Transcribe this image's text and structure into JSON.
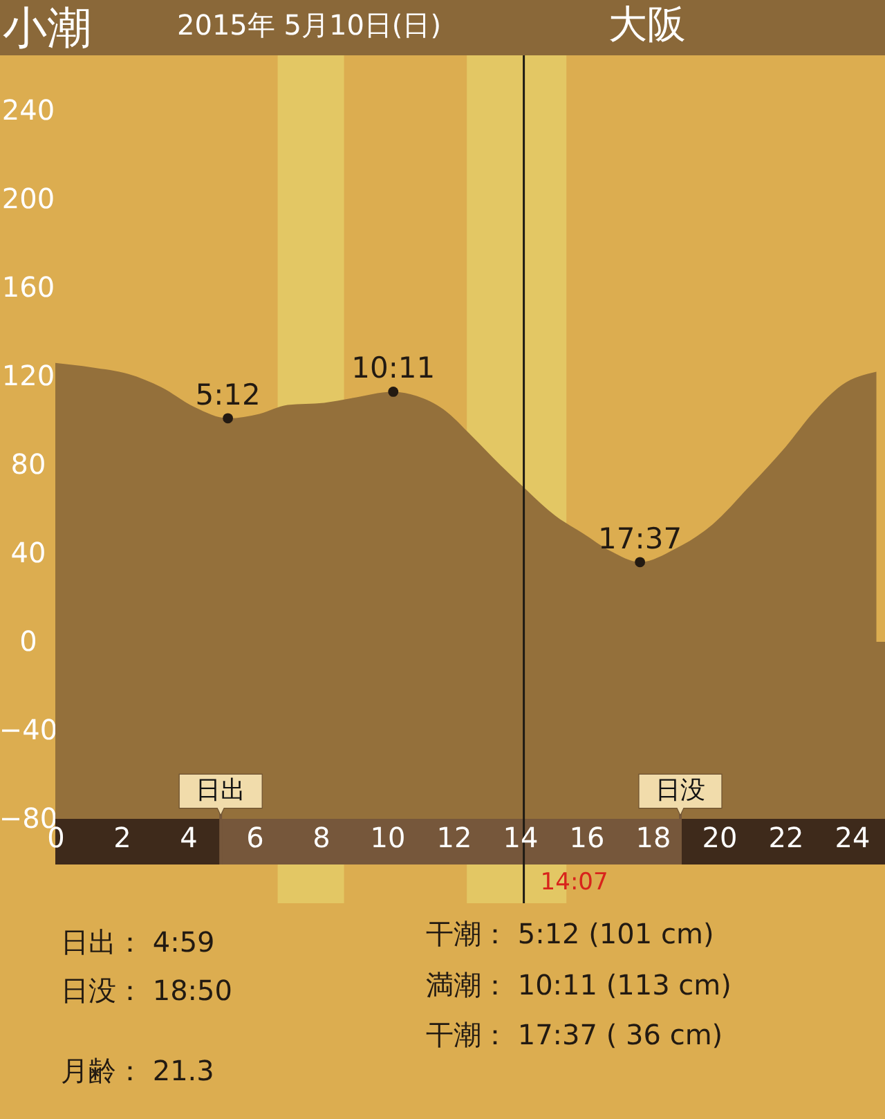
{
  "chart_data": {
    "type": "area",
    "title": "小潮",
    "subtitle": "2015年 5月10日(日)",
    "xlim": [
      0,
      25
    ],
    "xticks": [
      0,
      2,
      4,
      6,
      8,
      10,
      12,
      14,
      16,
      18,
      20,
      22,
      24
    ],
    "ylim": [
      -80,
      265
    ],
    "yticks": [
      -80,
      -40,
      0,
      40,
      80,
      120,
      160,
      200,
      240
    ],
    "grid": false,
    "series": [
      {
        "color": "#94703b",
        "x": [
          0,
          1.1,
          2.2,
          3.2,
          4.2,
          5.2,
          6.15,
          7.0,
          8.1,
          8.9,
          10.18,
          10.9,
          11.7,
          12.55,
          13.4,
          14.17,
          15.06,
          15.9,
          16.73,
          17.62,
          18.68,
          19.8,
          20.9,
          22.0,
          22.86,
          23.7,
          24.74
        ],
        "values": [
          126,
          124,
          121,
          115,
          106,
          101,
          103,
          107,
          108,
          110,
          113,
          111,
          105,
          93,
          80,
          69,
          57,
          49,
          41,
          36,
          42,
          53,
          70,
          88,
          104,
          116,
          122
        ]
      },
      {
        "type": "scatter",
        "color": "#231a12",
        "marker": "circle",
        "x": [
          5.2,
          10.183,
          17.617
        ],
        "values": [
          101,
          113,
          36
        ]
      }
    ],
    "bands": [
      {
        "axis": "x",
        "from": 6.7,
        "to": 8.7,
        "color": "#e3c764"
      },
      {
        "axis": "x",
        "from": 12.4,
        "to": 15.4,
        "color": "#e3c764"
      },
      {
        "axis": "y",
        "from": -80,
        "to": 0,
        "color": "#94703b"
      }
    ],
    "ref_lines": [
      {
        "axis": "x",
        "value": 4.983,
        "label": "日出",
        "color": "#76573b"
      },
      {
        "axis": "x",
        "value": 18.833,
        "label": "日没",
        "color": "#76573b"
      },
      {
        "axis": "x",
        "value": 14.117,
        "label": "14:07",
        "color": "#1e1a14"
      }
    ],
    "annotations": [
      "大阪",
      {
        "text": "5:12",
        "x": 5.2,
        "y": 101
      },
      {
        "text": "10:11",
        "x": 10.183,
        "y": 113
      },
      {
        "text": "17:37",
        "x": 17.617,
        "y": 36
      },
      "日出：  4:59",
      "日没：  18:50",
      "月齢：  21.3",
      "干潮：  5:12  (101 cm)",
      "満潮：  10:11  (113 cm)",
      "干潮：  17:37  ( 36 cm)"
    ]
  }
}
